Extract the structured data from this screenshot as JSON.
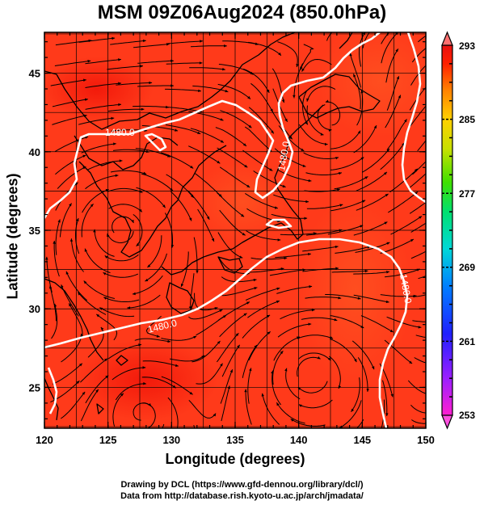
{
  "title": "MSM 09Z06Aug2024 (850.0hPa)",
  "axes": {
    "xlabel": "Longitude (degrees)",
    "ylabel": "Latitude  (degrees)",
    "xlim": [
      120,
      150
    ],
    "ylim": [
      22.4,
      47.6
    ],
    "xticks": [
      "120",
      "125",
      "130",
      "135",
      "140",
      "145",
      "150"
    ],
    "yticks": [
      "25",
      "30",
      "35",
      "40",
      "45"
    ]
  },
  "colorbar": {
    "min": 253,
    "max": 293,
    "tick_labels": [
      "293",
      "285",
      "277",
      "269",
      "261",
      "253"
    ],
    "colors": [
      "#ff1fd0",
      "#9b1fff",
      "#2020ff",
      "#0080ff",
      "#00d8d8",
      "#00e070",
      "#40e000",
      "#c8e000",
      "#ffd000",
      "#ff8000",
      "#ff2000",
      "#e81010"
    ]
  },
  "contour": {
    "labels": [
      "1480.0",
      "1480.0",
      "1480.0",
      "1480.0"
    ],
    "color": "#ffffff"
  },
  "field_color": "#ff3a1a",
  "credits": {
    "line1": "Drawing by DCL (https://www.gfd-dennou.org/library/dcl/)",
    "line2": "Data from http://database.rish.kyoto-u.ac.jp/arch/jmadata/"
  }
}
